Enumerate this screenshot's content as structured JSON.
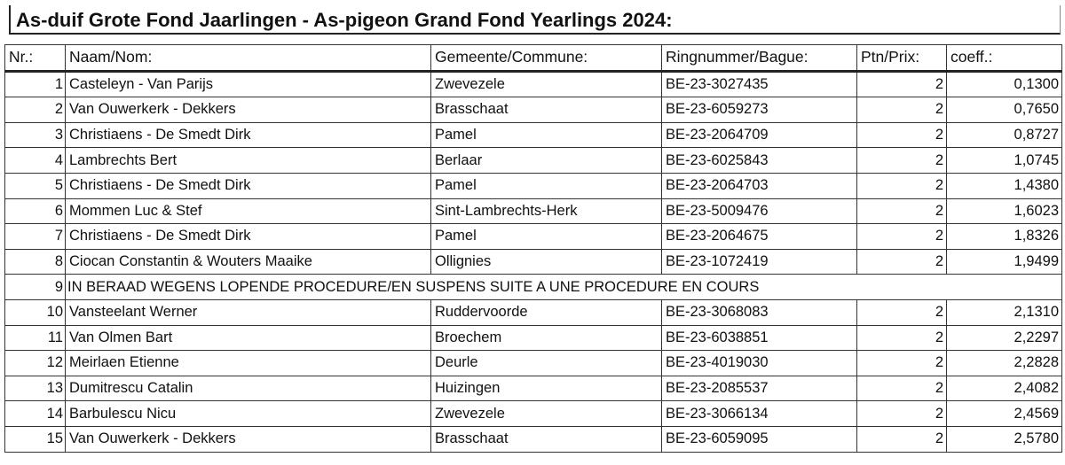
{
  "title": "As-duif Grote Fond Jaarlingen - As-pigeon Grand Fond Yearlings 2024:",
  "headers": [
    "Nr.:",
    "Naam/Nom:",
    "Gemeente/Commune:",
    "Ringnummer/Bague:",
    "Ptn/Prix:",
    "coeff.:"
  ],
  "rows": [
    {
      "nr": "1",
      "name": "Casteleyn - Van Parijs",
      "commune": "Zwevezele",
      "ring": "BE-23-3027435",
      "prize": "2",
      "coeff": "0,1300"
    },
    {
      "nr": "2",
      "name": "Van Ouwerkerk - Dekkers",
      "commune": "Brasschaat",
      "ring": "BE-23-6059273",
      "prize": "2",
      "coeff": "0,7650"
    },
    {
      "nr": "3",
      "name": "Christiaens - De Smedt Dirk",
      "commune": "Pamel",
      "ring": "BE-23-2064709",
      "prize": "2",
      "coeff": "0,8727"
    },
    {
      "nr": "4",
      "name": "Lambrechts Bert",
      "commune": "Berlaar",
      "ring": "BE-23-6025843",
      "prize": "2",
      "coeff": "1,0745"
    },
    {
      "nr": "5",
      "name": "Christiaens - De Smedt Dirk",
      "commune": "Pamel",
      "ring": "BE-23-2064703",
      "prize": "2",
      "coeff": "1,4380"
    },
    {
      "nr": "6",
      "name": "Mommen Luc & Stef",
      "commune": "Sint-Lambrechts-Herk",
      "ring": "BE-23-5009476",
      "prize": "2",
      "coeff": "1,6023"
    },
    {
      "nr": "7",
      "name": "Christiaens - De Smedt Dirk",
      "commune": "Pamel",
      "ring": "BE-23-2064675",
      "prize": "2",
      "coeff": "1,8326"
    },
    {
      "nr": "8",
      "name": "Ciocan Constantin & Wouters Maaike",
      "commune": "Ollignies",
      "ring": "BE-23-1072419",
      "prize": "2",
      "coeff": "1,9499"
    },
    {
      "nr": "9",
      "note": "IN BERAAD WEGENS LOPENDE PROCEDURE/EN SUSPENS SUITE A UNE PROCEDURE EN COURS"
    },
    {
      "nr": "10",
      "name": "Vansteelant Werner",
      "commune": "Ruddervoorde",
      "ring": "BE-23-3068083",
      "prize": "2",
      "coeff": "2,1310"
    },
    {
      "nr": "11",
      "name": "Van Olmen Bart",
      "commune": "Broechem",
      "ring": "BE-23-6038851",
      "prize": "2",
      "coeff": "2,2297"
    },
    {
      "nr": "12",
      "name": "Meirlaen Etienne",
      "commune": "Deurle",
      "ring": "BE-23-4019030",
      "prize": "2",
      "coeff": "2,2828"
    },
    {
      "nr": "13",
      "name": "Dumitrescu Catalin",
      "commune": "Huizingen",
      "ring": "BE-23-2085537",
      "prize": "2",
      "coeff": "2,4082"
    },
    {
      "nr": "14",
      "name": "Barbulescu Nicu",
      "commune": "Zwevezele",
      "ring": "BE-23-3066134",
      "prize": "2",
      "coeff": "2,4569"
    },
    {
      "nr": "15",
      "name": "Van Ouwerkerk - Dekkers",
      "commune": "Brasschaat",
      "ring": "BE-23-6059095",
      "prize": "2",
      "coeff": "2,5780"
    }
  ]
}
